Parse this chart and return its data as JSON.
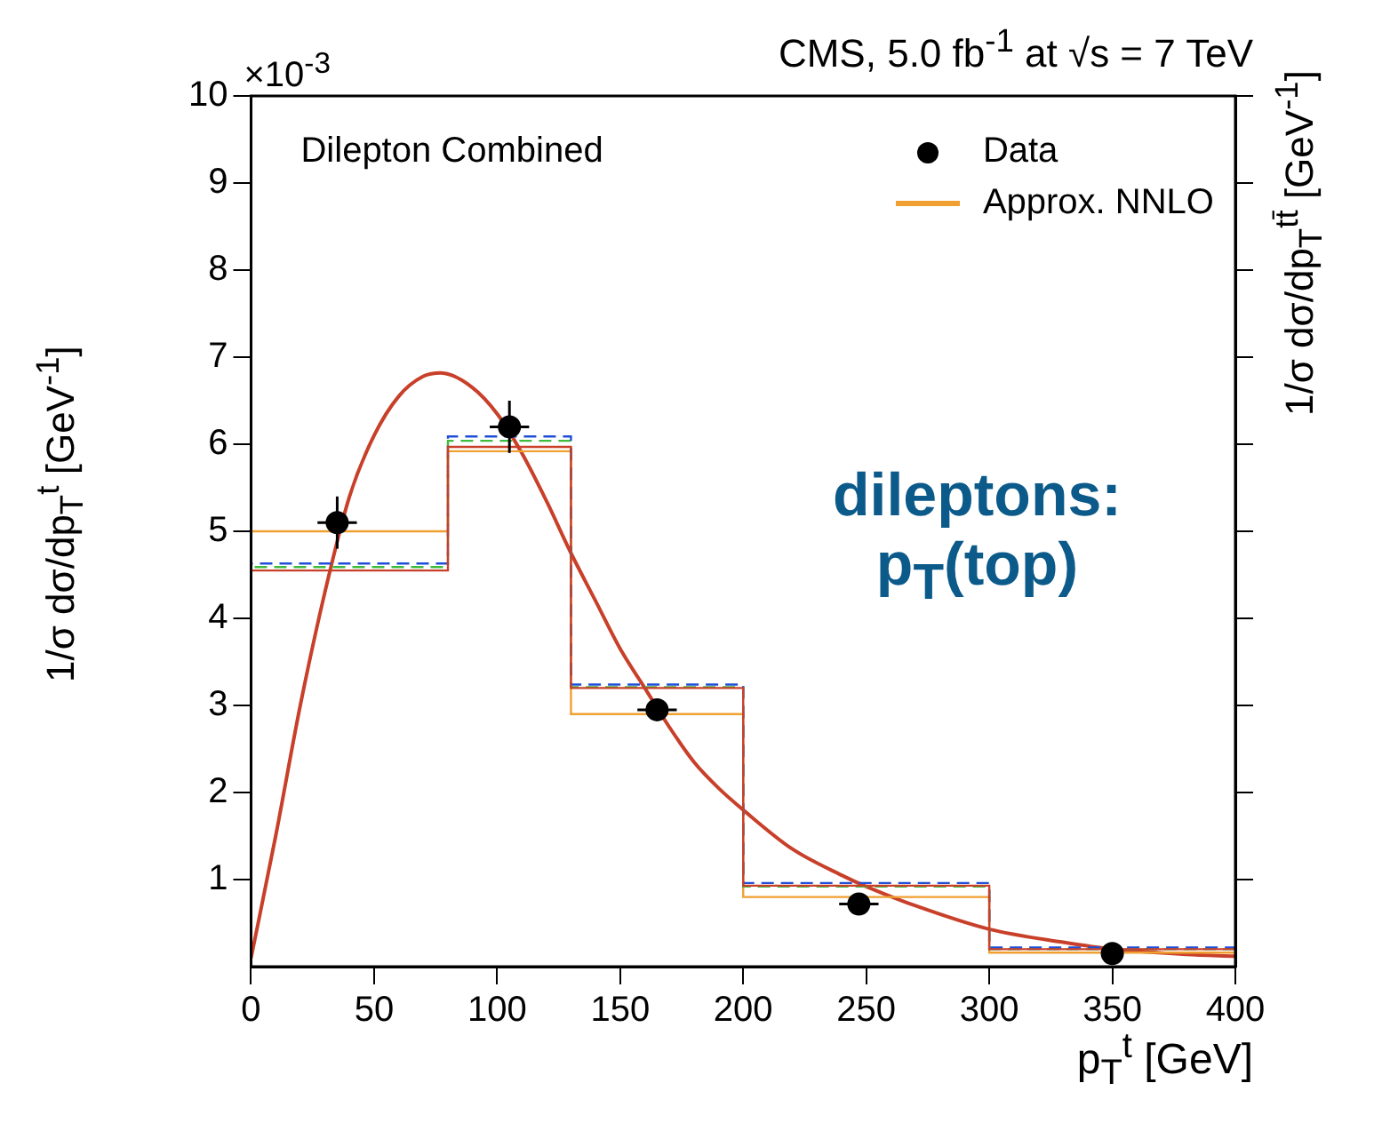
{
  "chart_data": {
    "type": "histogram",
    "title": "CMS, 5.0 fb$^{-1}$ at √s = 7 TeV",
    "xlabel": "p$_{T}$$^{t}$ [GeV]",
    "ylabel": "1/σ dσ/dp$_{T}$$^{t}$ [GeV$^{-1}$]",
    "y2label": "1/σ dσ/dp$_{T}$$^{tt̄}$ [GeV$^{-1}$]",
    "annotations": [
      "×10$^{-3}$",
      "Dilepton Combined",
      "dileptons: p$_{T}$(top)"
    ],
    "bins": [
      0,
      80,
      130,
      200,
      300,
      400
    ],
    "series": [
      {
        "name": "Data",
        "type": "scatter",
        "color": "#000000",
        "marker": "circle",
        "x": [
          35,
          105,
          165,
          247,
          350
        ],
        "values": [
          5.1,
          6.2,
          2.95,
          0.72,
          0.15
        ],
        "errors": [
          0.3,
          0.3,
          0.1,
          0.06,
          0.05
        ],
        "xerrors": [
          8,
          8,
          8,
          8,
          null
        ]
      },
      {
        "color": "#c8402a",
        "values": [
          4.55,
          5.97,
          3.2,
          0.93,
          0.2
        ]
      },
      {
        "color": "#1f4fd6",
        "line_style": "dashed",
        "values": [
          4.63,
          6.09,
          3.24,
          0.96,
          0.22
        ]
      },
      {
        "color": "#3dbb3d",
        "line_style": "dashed",
        "values": [
          4.59,
          6.04,
          3.21,
          0.92,
          0.2
        ]
      },
      {
        "name": "Approx. NNLO",
        "color": "#f0a030",
        "values": [
          5.0,
          5.92,
          2.9,
          0.8,
          0.16
        ]
      },
      {
        "type": "line",
        "color": "#c8402a",
        "x": [
          0,
          10,
          20,
          30,
          40,
          50,
          60,
          70,
          77,
          90,
          100,
          110,
          120,
          130,
          140,
          150,
          160,
          170,
          180,
          190,
          200,
          220,
          240,
          250,
          270,
          300,
          330,
          350,
          380,
          400
        ],
        "values": [
          0.1,
          1.5,
          3.0,
          4.3,
          5.4,
          6.1,
          6.55,
          6.78,
          6.82,
          6.65,
          6.35,
          5.9,
          5.35,
          4.75,
          4.2,
          3.65,
          3.2,
          2.75,
          2.35,
          2.05,
          1.8,
          1.35,
          1.05,
          0.92,
          0.7,
          0.43,
          0.28,
          0.2,
          0.14,
          0.12
        ]
      }
    ],
    "xlim": [
      0,
      400
    ],
    "xticks": [
      0,
      50,
      100,
      150,
      200,
      250,
      300,
      350,
      400
    ],
    "ylim": [
      0,
      10
    ],
    "yticks": [
      1,
      2,
      3,
      4,
      5,
      6,
      7,
      8,
      9,
      10
    ],
    "grid": false,
    "legend": "top right"
  }
}
